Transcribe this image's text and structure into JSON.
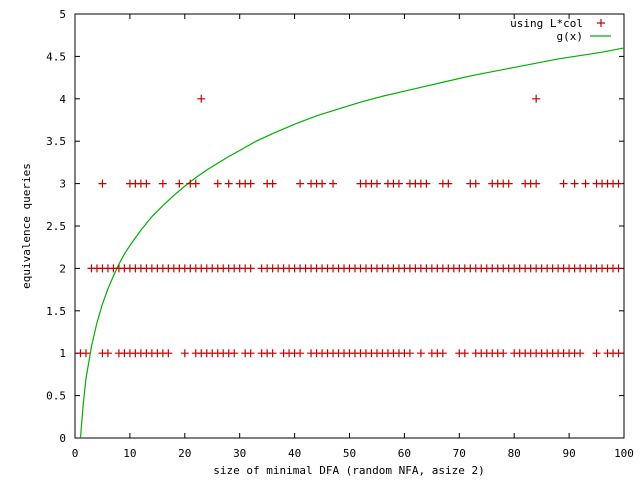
{
  "chart_data": {
    "type": "scatter",
    "xlabel": "size of minimal DFA (random NFA, asize 2)",
    "ylabel": "equivalence queries",
    "xlim": [
      0,
      100
    ],
    "ylim": [
      0,
      5
    ],
    "xticks": [
      "0",
      "10",
      "20",
      "30",
      "40",
      "50",
      "60",
      "70",
      "80",
      "90",
      "100"
    ],
    "yticks": [
      "0",
      "0.5",
      "1",
      "1.5",
      "2",
      "2.5",
      "3",
      "3.5",
      "4",
      "4.5",
      "5"
    ],
    "legend_position": "top-right",
    "series": [
      {
        "name": "using L*col",
        "kind": "points",
        "marker": "+",
        "color": "#cc0000",
        "points": [
          [
            1,
            1
          ],
          [
            2,
            1
          ],
          [
            5,
            1
          ],
          [
            6,
            1
          ],
          [
            8,
            1
          ],
          [
            9,
            1
          ],
          [
            10,
            1
          ],
          [
            11,
            1
          ],
          [
            12,
            1
          ],
          [
            13,
            1
          ],
          [
            14,
            1
          ],
          [
            15,
            1
          ],
          [
            16,
            1
          ],
          [
            17,
            1
          ],
          [
            20,
            1
          ],
          [
            22,
            1
          ],
          [
            23,
            1
          ],
          [
            24,
            1
          ],
          [
            25,
            1
          ],
          [
            26,
            1
          ],
          [
            27,
            1
          ],
          [
            28,
            1
          ],
          [
            29,
            1
          ],
          [
            31,
            1
          ],
          [
            32,
            1
          ],
          [
            34,
            1
          ],
          [
            35,
            1
          ],
          [
            36,
            1
          ],
          [
            38,
            1
          ],
          [
            39,
            1
          ],
          [
            40,
            1
          ],
          [
            41,
            1
          ],
          [
            43,
            1
          ],
          [
            44,
            1
          ],
          [
            45,
            1
          ],
          [
            46,
            1
          ],
          [
            47,
            1
          ],
          [
            48,
            1
          ],
          [
            49,
            1
          ],
          [
            50,
            1
          ],
          [
            51,
            1
          ],
          [
            52,
            1
          ],
          [
            53,
            1
          ],
          [
            54,
            1
          ],
          [
            55,
            1
          ],
          [
            56,
            1
          ],
          [
            57,
            1
          ],
          [
            58,
            1
          ],
          [
            59,
            1
          ],
          [
            60,
            1
          ],
          [
            61,
            1
          ],
          [
            63,
            1
          ],
          [
            65,
            1
          ],
          [
            66,
            1
          ],
          [
            67,
            1
          ],
          [
            70,
            1
          ],
          [
            71,
            1
          ],
          [
            73,
            1
          ],
          [
            74,
            1
          ],
          [
            75,
            1
          ],
          [
            76,
            1
          ],
          [
            77,
            1
          ],
          [
            78,
            1
          ],
          [
            80,
            1
          ],
          [
            81,
            1
          ],
          [
            82,
            1
          ],
          [
            83,
            1
          ],
          [
            84,
            1
          ],
          [
            85,
            1
          ],
          [
            86,
            1
          ],
          [
            87,
            1
          ],
          [
            88,
            1
          ],
          [
            89,
            1
          ],
          [
            90,
            1
          ],
          [
            91,
            1
          ],
          [
            92,
            1
          ],
          [
            95,
            1
          ],
          [
            97,
            1
          ],
          [
            98,
            1
          ],
          [
            99,
            1
          ],
          [
            3,
            2
          ],
          [
            4,
            2
          ],
          [
            5,
            2
          ],
          [
            6,
            2
          ],
          [
            7,
            2
          ],
          [
            8,
            2
          ],
          [
            9,
            2
          ],
          [
            10,
            2
          ],
          [
            11,
            2
          ],
          [
            12,
            2
          ],
          [
            13,
            2
          ],
          [
            14,
            2
          ],
          [
            15,
            2
          ],
          [
            16,
            2
          ],
          [
            17,
            2
          ],
          [
            18,
            2
          ],
          [
            19,
            2
          ],
          [
            20,
            2
          ],
          [
            21,
            2
          ],
          [
            22,
            2
          ],
          [
            23,
            2
          ],
          [
            24,
            2
          ],
          [
            25,
            2
          ],
          [
            26,
            2
          ],
          [
            27,
            2
          ],
          [
            28,
            2
          ],
          [
            29,
            2
          ],
          [
            30,
            2
          ],
          [
            31,
            2
          ],
          [
            32,
            2
          ],
          [
            34,
            2
          ],
          [
            35,
            2
          ],
          [
            36,
            2
          ],
          [
            37,
            2
          ],
          [
            38,
            2
          ],
          [
            39,
            2
          ],
          [
            40,
            2
          ],
          [
            41,
            2
          ],
          [
            42,
            2
          ],
          [
            43,
            2
          ],
          [
            44,
            2
          ],
          [
            45,
            2
          ],
          [
            46,
            2
          ],
          [
            47,
            2
          ],
          [
            48,
            2
          ],
          [
            49,
            2
          ],
          [
            50,
            2
          ],
          [
            51,
            2
          ],
          [
            52,
            2
          ],
          [
            53,
            2
          ],
          [
            54,
            2
          ],
          [
            55,
            2
          ],
          [
            56,
            2
          ],
          [
            57,
            2
          ],
          [
            58,
            2
          ],
          [
            59,
            2
          ],
          [
            60,
            2
          ],
          [
            61,
            2
          ],
          [
            62,
            2
          ],
          [
            63,
            2
          ],
          [
            64,
            2
          ],
          [
            65,
            2
          ],
          [
            66,
            2
          ],
          [
            67,
            2
          ],
          [
            68,
            2
          ],
          [
            69,
            2
          ],
          [
            70,
            2
          ],
          [
            71,
            2
          ],
          [
            72,
            2
          ],
          [
            73,
            2
          ],
          [
            74,
            2
          ],
          [
            75,
            2
          ],
          [
            76,
            2
          ],
          [
            77,
            2
          ],
          [
            78,
            2
          ],
          [
            79,
            2
          ],
          [
            80,
            2
          ],
          [
            81,
            2
          ],
          [
            82,
            2
          ],
          [
            83,
            2
          ],
          [
            84,
            2
          ],
          [
            85,
            2
          ],
          [
            86,
            2
          ],
          [
            87,
            2
          ],
          [
            88,
            2
          ],
          [
            89,
            2
          ],
          [
            90,
            2
          ],
          [
            91,
            2
          ],
          [
            92,
            2
          ],
          [
            93,
            2
          ],
          [
            94,
            2
          ],
          [
            95,
            2
          ],
          [
            96,
            2
          ],
          [
            97,
            2
          ],
          [
            98,
            2
          ],
          [
            99,
            2
          ],
          [
            5,
            3
          ],
          [
            10,
            3
          ],
          [
            11,
            3
          ],
          [
            12,
            3
          ],
          [
            13,
            3
          ],
          [
            16,
            3
          ],
          [
            19,
            3
          ],
          [
            21,
            3
          ],
          [
            22,
            3
          ],
          [
            26,
            3
          ],
          [
            28,
            3
          ],
          [
            30,
            3
          ],
          [
            31,
            3
          ],
          [
            32,
            3
          ],
          [
            35,
            3
          ],
          [
            36,
            3
          ],
          [
            41,
            3
          ],
          [
            43,
            3
          ],
          [
            44,
            3
          ],
          [
            45,
            3
          ],
          [
            47,
            3
          ],
          [
            52,
            3
          ],
          [
            53,
            3
          ],
          [
            54,
            3
          ],
          [
            55,
            3
          ],
          [
            57,
            3
          ],
          [
            58,
            3
          ],
          [
            59,
            3
          ],
          [
            61,
            3
          ],
          [
            62,
            3
          ],
          [
            63,
            3
          ],
          [
            64,
            3
          ],
          [
            67,
            3
          ],
          [
            68,
            3
          ],
          [
            72,
            3
          ],
          [
            73,
            3
          ],
          [
            76,
            3
          ],
          [
            77,
            3
          ],
          [
            78,
            3
          ],
          [
            79,
            3
          ],
          [
            82,
            3
          ],
          [
            83,
            3
          ],
          [
            84,
            3
          ],
          [
            89,
            3
          ],
          [
            91,
            3
          ],
          [
            93,
            3
          ],
          [
            95,
            3
          ],
          [
            96,
            3
          ],
          [
            97,
            3
          ],
          [
            98,
            3
          ],
          [
            99,
            3
          ],
          [
            23,
            4
          ],
          [
            84,
            4
          ]
        ]
      },
      {
        "name": "g(x)",
        "kind": "line",
        "color": "#00b000",
        "x": [
          1,
          1.5,
          2,
          3,
          4,
          5,
          6,
          7,
          8,
          9,
          10,
          12,
          14,
          16,
          18,
          20,
          22,
          24,
          26,
          28,
          30,
          33,
          36,
          40,
          44,
          48,
          52,
          56,
          60,
          64,
          68,
          72,
          76,
          80,
          84,
          88,
          92,
          96,
          100
        ],
        "y": [
          0,
          0.4,
          0.7,
          1.08,
          1.36,
          1.58,
          1.76,
          1.91,
          2.05,
          2.17,
          2.27,
          2.45,
          2.61,
          2.74,
          2.86,
          2.97,
          3.07,
          3.16,
          3.24,
          3.32,
          3.39,
          3.5,
          3.59,
          3.7,
          3.8,
          3.88,
          3.96,
          4.03,
          4.09,
          4.15,
          4.21,
          4.27,
          4.32,
          4.37,
          4.42,
          4.47,
          4.51,
          4.55,
          4.6
        ]
      }
    ]
  }
}
